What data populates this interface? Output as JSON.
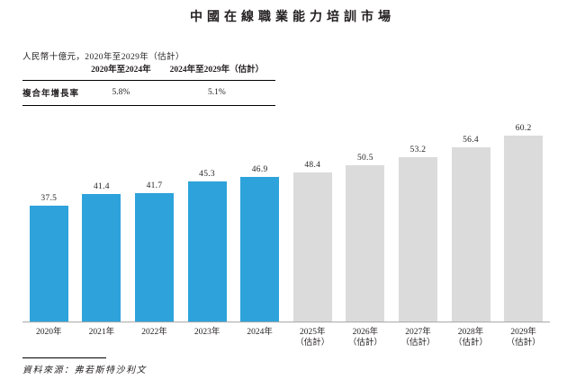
{
  "title": "中國在線職業能力培訓市場",
  "subtitle": "人民幣十億元，2020年至2029年（估計）",
  "cagr_table": {
    "row_label": "複合年增長率",
    "columns": [
      {
        "header": "2020年至2024年",
        "value": "5.8%"
      },
      {
        "header": "2024年至2029年（估計）",
        "value": "5.1%"
      }
    ]
  },
  "chart_data": {
    "type": "bar",
    "title": "中國在線職業能力培訓市場",
    "unit": "人民幣十億元",
    "categories": [
      "2020年",
      "2021年",
      "2022年",
      "2023年",
      "2024年",
      "2025年（估計）",
      "2026年（估計）",
      "2027年（估計）",
      "2028年（估計）",
      "2029年（估計）"
    ],
    "values": [
      37.5,
      41.4,
      41.7,
      45.3,
      46.9,
      48.4,
      50.5,
      53.2,
      56.4,
      60.2
    ],
    "historical_count": 5,
    "colors": {
      "historical": "#2ea3db",
      "estimated": "#dbdbdb"
    },
    "axis_line_color": "#a9a9a9",
    "grid": false,
    "legend": false
  },
  "source": "資料來源：弗若斯特沙利文"
}
